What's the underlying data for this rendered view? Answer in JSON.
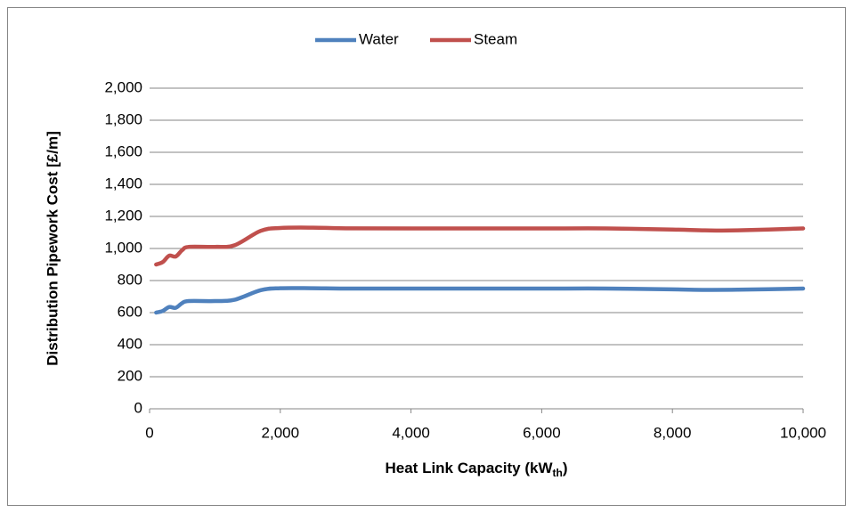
{
  "chart_data": {
    "type": "line",
    "x_label_parts": [
      "Heat Link Capacity (kW",
      "th",
      ")"
    ],
    "y_label": "Distribution Pipework Cost [£/m]",
    "x": [
      100,
      200,
      300,
      400,
      500,
      600,
      1000,
      1300,
      1700,
      2000,
      2500,
      3000,
      4000,
      6000,
      7000,
      8000,
      8500,
      9000,
      10000
    ],
    "series": [
      {
        "name": "Water",
        "color": "#4f81bd",
        "values": [
          600,
          610,
          635,
          630,
          660,
          672,
          672,
          680,
          740,
          752,
          752,
          750,
          750,
          750,
          750,
          745,
          742,
          743,
          750
        ]
      },
      {
        "name": "Steam",
        "color": "#c0504d",
        "values": [
          900,
          915,
          955,
          950,
          990,
          1010,
          1010,
          1020,
          1110,
          1128,
          1130,
          1126,
          1125,
          1125,
          1125,
          1118,
          1113,
          1113,
          1125
        ]
      }
    ],
    "xlim": [
      0,
      10000
    ],
    "xticks": [
      0,
      {
        "value": 2000,
        "label": "2,000"
      },
      {
        "value": 4000,
        "label": "4,000"
      },
      {
        "value": 6000,
        "label": "6,000"
      },
      {
        "value": 8000,
        "label": "8,000"
      },
      {
        "value": 10000,
        "label": "10,000"
      }
    ],
    "ylim": [
      0,
      2000
    ],
    "yticks": [
      0,
      200,
      400,
      600,
      800,
      {
        "value": 1000,
        "label": "1,000"
      },
      {
        "value": 1200,
        "label": "1,200"
      },
      {
        "value": 1400,
        "label": "1,400"
      },
      {
        "value": 1600,
        "label": "1,600"
      },
      {
        "value": 1800,
        "label": "1,800"
      },
      {
        "value": 2000,
        "label": "2,000"
      }
    ],
    "grid": true,
    "legend": "top"
  }
}
